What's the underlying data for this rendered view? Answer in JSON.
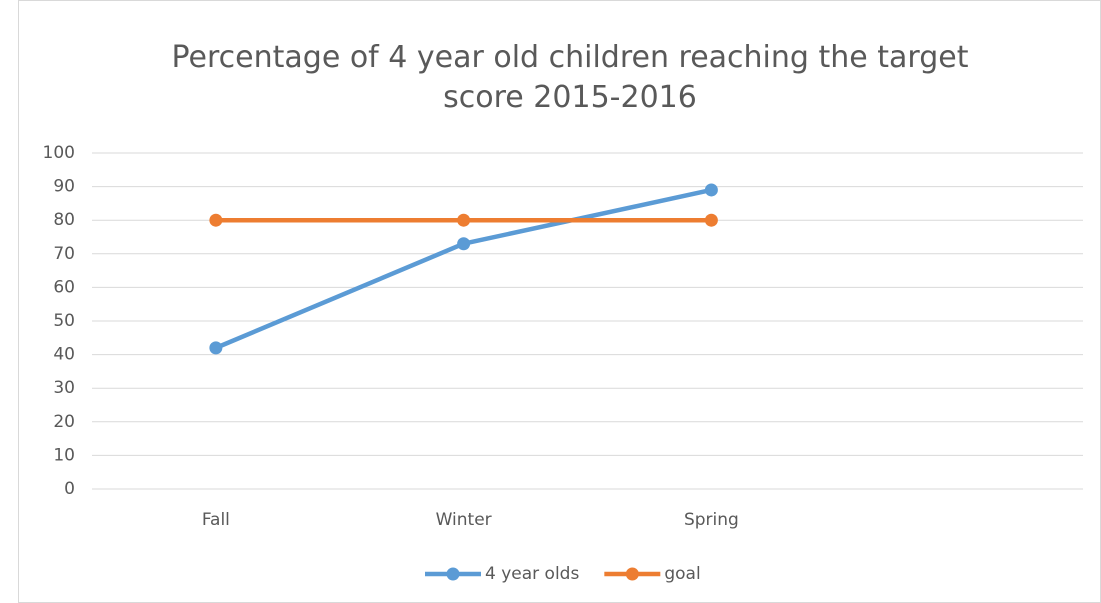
{
  "chart_data": {
    "type": "line",
    "title": "Percentage of 4 year old children reaching the target score 2015-2016",
    "categories": [
      "Fall",
      "Winter",
      "Spring",
      null
    ],
    "series": [
      {
        "name": "4 year olds",
        "color": "#5b9bd5",
        "values": [
          42,
          73,
          89,
          null
        ]
      },
      {
        "name": "goal",
        "color": "#ed7d31",
        "values": [
          80,
          80,
          80,
          null
        ]
      }
    ],
    "ylim": [
      0,
      100
    ],
    "yticks": [
      0,
      10,
      20,
      30,
      40,
      50,
      60,
      70,
      80,
      90,
      100
    ],
    "grid": true,
    "legend": "bottom"
  }
}
